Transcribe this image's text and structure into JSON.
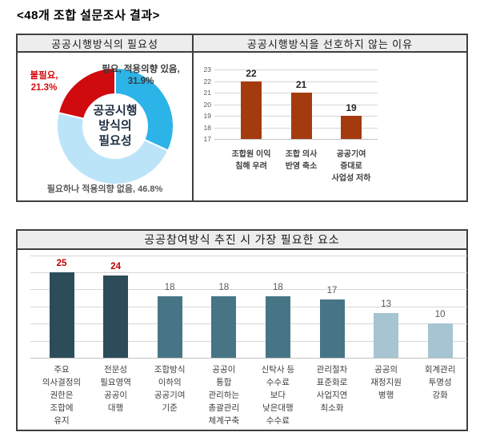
{
  "title": "<48개 조합 설문조사 결과>",
  "panels": {
    "pie": {
      "header": "공공시행방식의 필요성"
    },
    "reasons": {
      "header": "공공시행방식을 선호하지 않는 이유"
    },
    "elements": {
      "header": "공공참여방식 추진 시 가장 필요한 요소"
    }
  },
  "colors": {
    "pie_blue": "#2cb3e8",
    "pie_lightblue": "#bce4f9",
    "pie_red": "#d00b0e",
    "reason_bar": "#a33b0f",
    "dark_teal": "#2b4c58",
    "mid_teal": "#477586",
    "light_teal": "#a6c4d1",
    "highlight_red": "#c00000",
    "gray_label": "#595959"
  },
  "chart_data": [
    {
      "type": "pie",
      "donut": true,
      "title": "공공시행방식의 필요성",
      "labels": [
        "필요, 적용의향 있음",
        "필요하나 적용의향 없음",
        "불필요"
      ],
      "values": [
        31.9,
        46.8,
        21.3
      ],
      "slice_colors": [
        "#2cb3e8",
        "#bce4f9",
        "#d00b0e"
      ],
      "center_text": "공공시행\n방식의\n필요성",
      "callouts": {
        "need": "필요, 적용의향 있음,\n31.9%",
        "unneeded": "불필요,\n21.3%",
        "need_no_intent": "필요하나 적용의향 없음, 46.8%"
      }
    },
    {
      "type": "bar",
      "title": "공공시행방식을 선호하지 않는 이유",
      "categories": [
        "조합원 이익\n침해 우려",
        "조합 의사\n반영 축소",
        "공공기여\n증대로\n사업성 저하"
      ],
      "values": [
        22,
        21,
        19
      ],
      "ylim": [
        17,
        23
      ],
      "ytick_step": 1,
      "yticks": [
        17,
        18,
        19,
        20,
        21,
        22,
        23
      ],
      "grid": true,
      "bar_colors": [
        "#a33b0f",
        "#a33b0f",
        "#a33b0f"
      ],
      "value_label_colors": [
        "#262626",
        "#262626",
        "#262626"
      ],
      "value_label_weights": [
        700,
        700,
        700
      ]
    },
    {
      "type": "bar",
      "title": "공공참여방식 추진 시 가장 필요한 요소",
      "categories": [
        "주요\n의사결정의\n권한은\n조합에\n유지",
        "전문성\n필요영역\n공공이\n대행",
        "조합방식\n이하의\n공공기여\n기준",
        "공공이\n통합\n관리하는\n총괄관리\n체계구축",
        "신탁사 등\n수수료\n보다\n낮은대행\n수수료",
        "관리절차\n표준화로\n사업지연\n최소화",
        "공공의\n재정지원\n병행",
        "회계관리\n투명성\n강화"
      ],
      "values": [
        25,
        24,
        18,
        18,
        18,
        17,
        13,
        10
      ],
      "ylim": [
        0,
        30
      ],
      "ytick_step": 5,
      "grid": true,
      "bar_colors": [
        "#2b4c58",
        "#2b4c58",
        "#477586",
        "#477586",
        "#477586",
        "#477586",
        "#a6c4d1",
        "#a6c4d1"
      ],
      "value_label_colors": [
        "#c00000",
        "#c00000",
        "#595959",
        "#595959",
        "#595959",
        "#595959",
        "#595959",
        "#595959"
      ],
      "value_label_weights": [
        700,
        700,
        400,
        400,
        400,
        400,
        400,
        400
      ]
    }
  ]
}
